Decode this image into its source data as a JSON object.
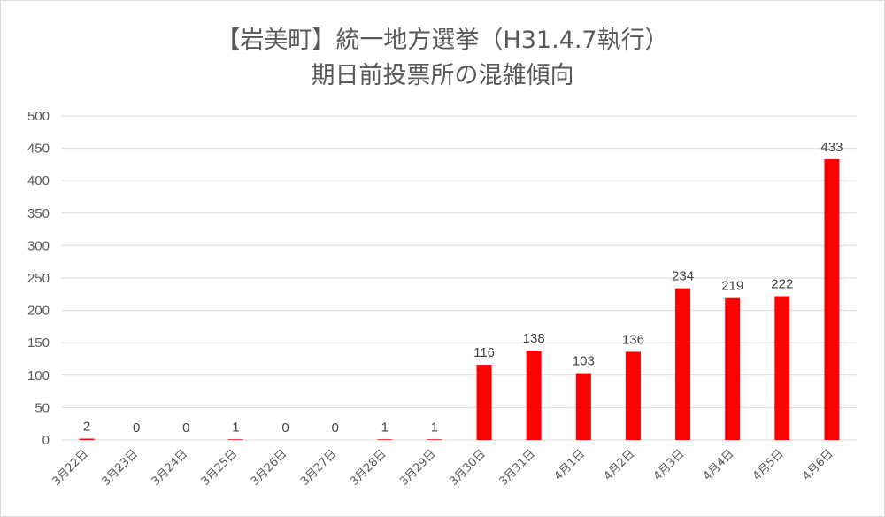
{
  "chart_data": {
    "type": "bar",
    "title_line1": "【岩美町】統一地方選挙（H31.4.7執行）",
    "title_line2": "期日前投票所の混雑傾向",
    "categories": [
      "3月22日",
      "3月23日",
      "3月24日",
      "3月25日",
      "3月26日",
      "3月27日",
      "3月28日",
      "3月29日",
      "3月30日",
      "3月31日",
      "4月1日",
      "4月2日",
      "4月3日",
      "4月4日",
      "4月5日",
      "4月6日"
    ],
    "values": [
      2,
      0,
      0,
      1,
      0,
      0,
      1,
      1,
      116,
      138,
      103,
      136,
      234,
      219,
      222,
      433
    ],
    "ylim": [
      0,
      500
    ],
    "yticks": [
      0,
      50,
      100,
      150,
      200,
      250,
      300,
      350,
      400,
      450,
      500
    ],
    "grid": true,
    "legend": "none",
    "bar_color": "#ff0000",
    "grid_color": "#d9d9d9"
  }
}
